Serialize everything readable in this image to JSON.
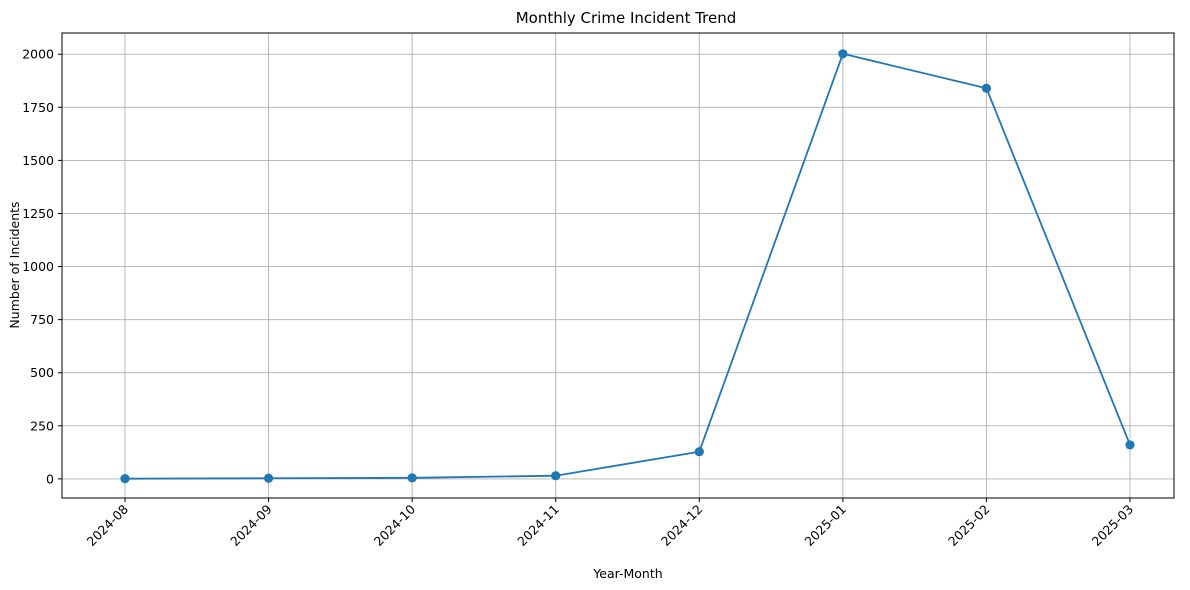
{
  "chart_data": {
    "type": "line",
    "title": "Monthly Crime Incident Trend",
    "xlabel": "Year-Month",
    "ylabel": "Number of Incidents",
    "categories": [
      "2024-08",
      "2024-09",
      "2024-10",
      "2024-11",
      "2024-12",
      "2025-01",
      "2025-02",
      "2025-03"
    ],
    "series": [
      {
        "values": [
          1,
          3,
          5,
          15,
          128,
          2002,
          1840,
          160
        ],
        "color": "#1f77b4",
        "marker": "circle"
      }
    ],
    "ylim": [
      -90,
      2100
    ],
    "yticks": [
      0,
      250,
      500,
      750,
      1000,
      1250,
      1500,
      1750,
      2000
    ],
    "grid": true,
    "legend": "none"
  }
}
